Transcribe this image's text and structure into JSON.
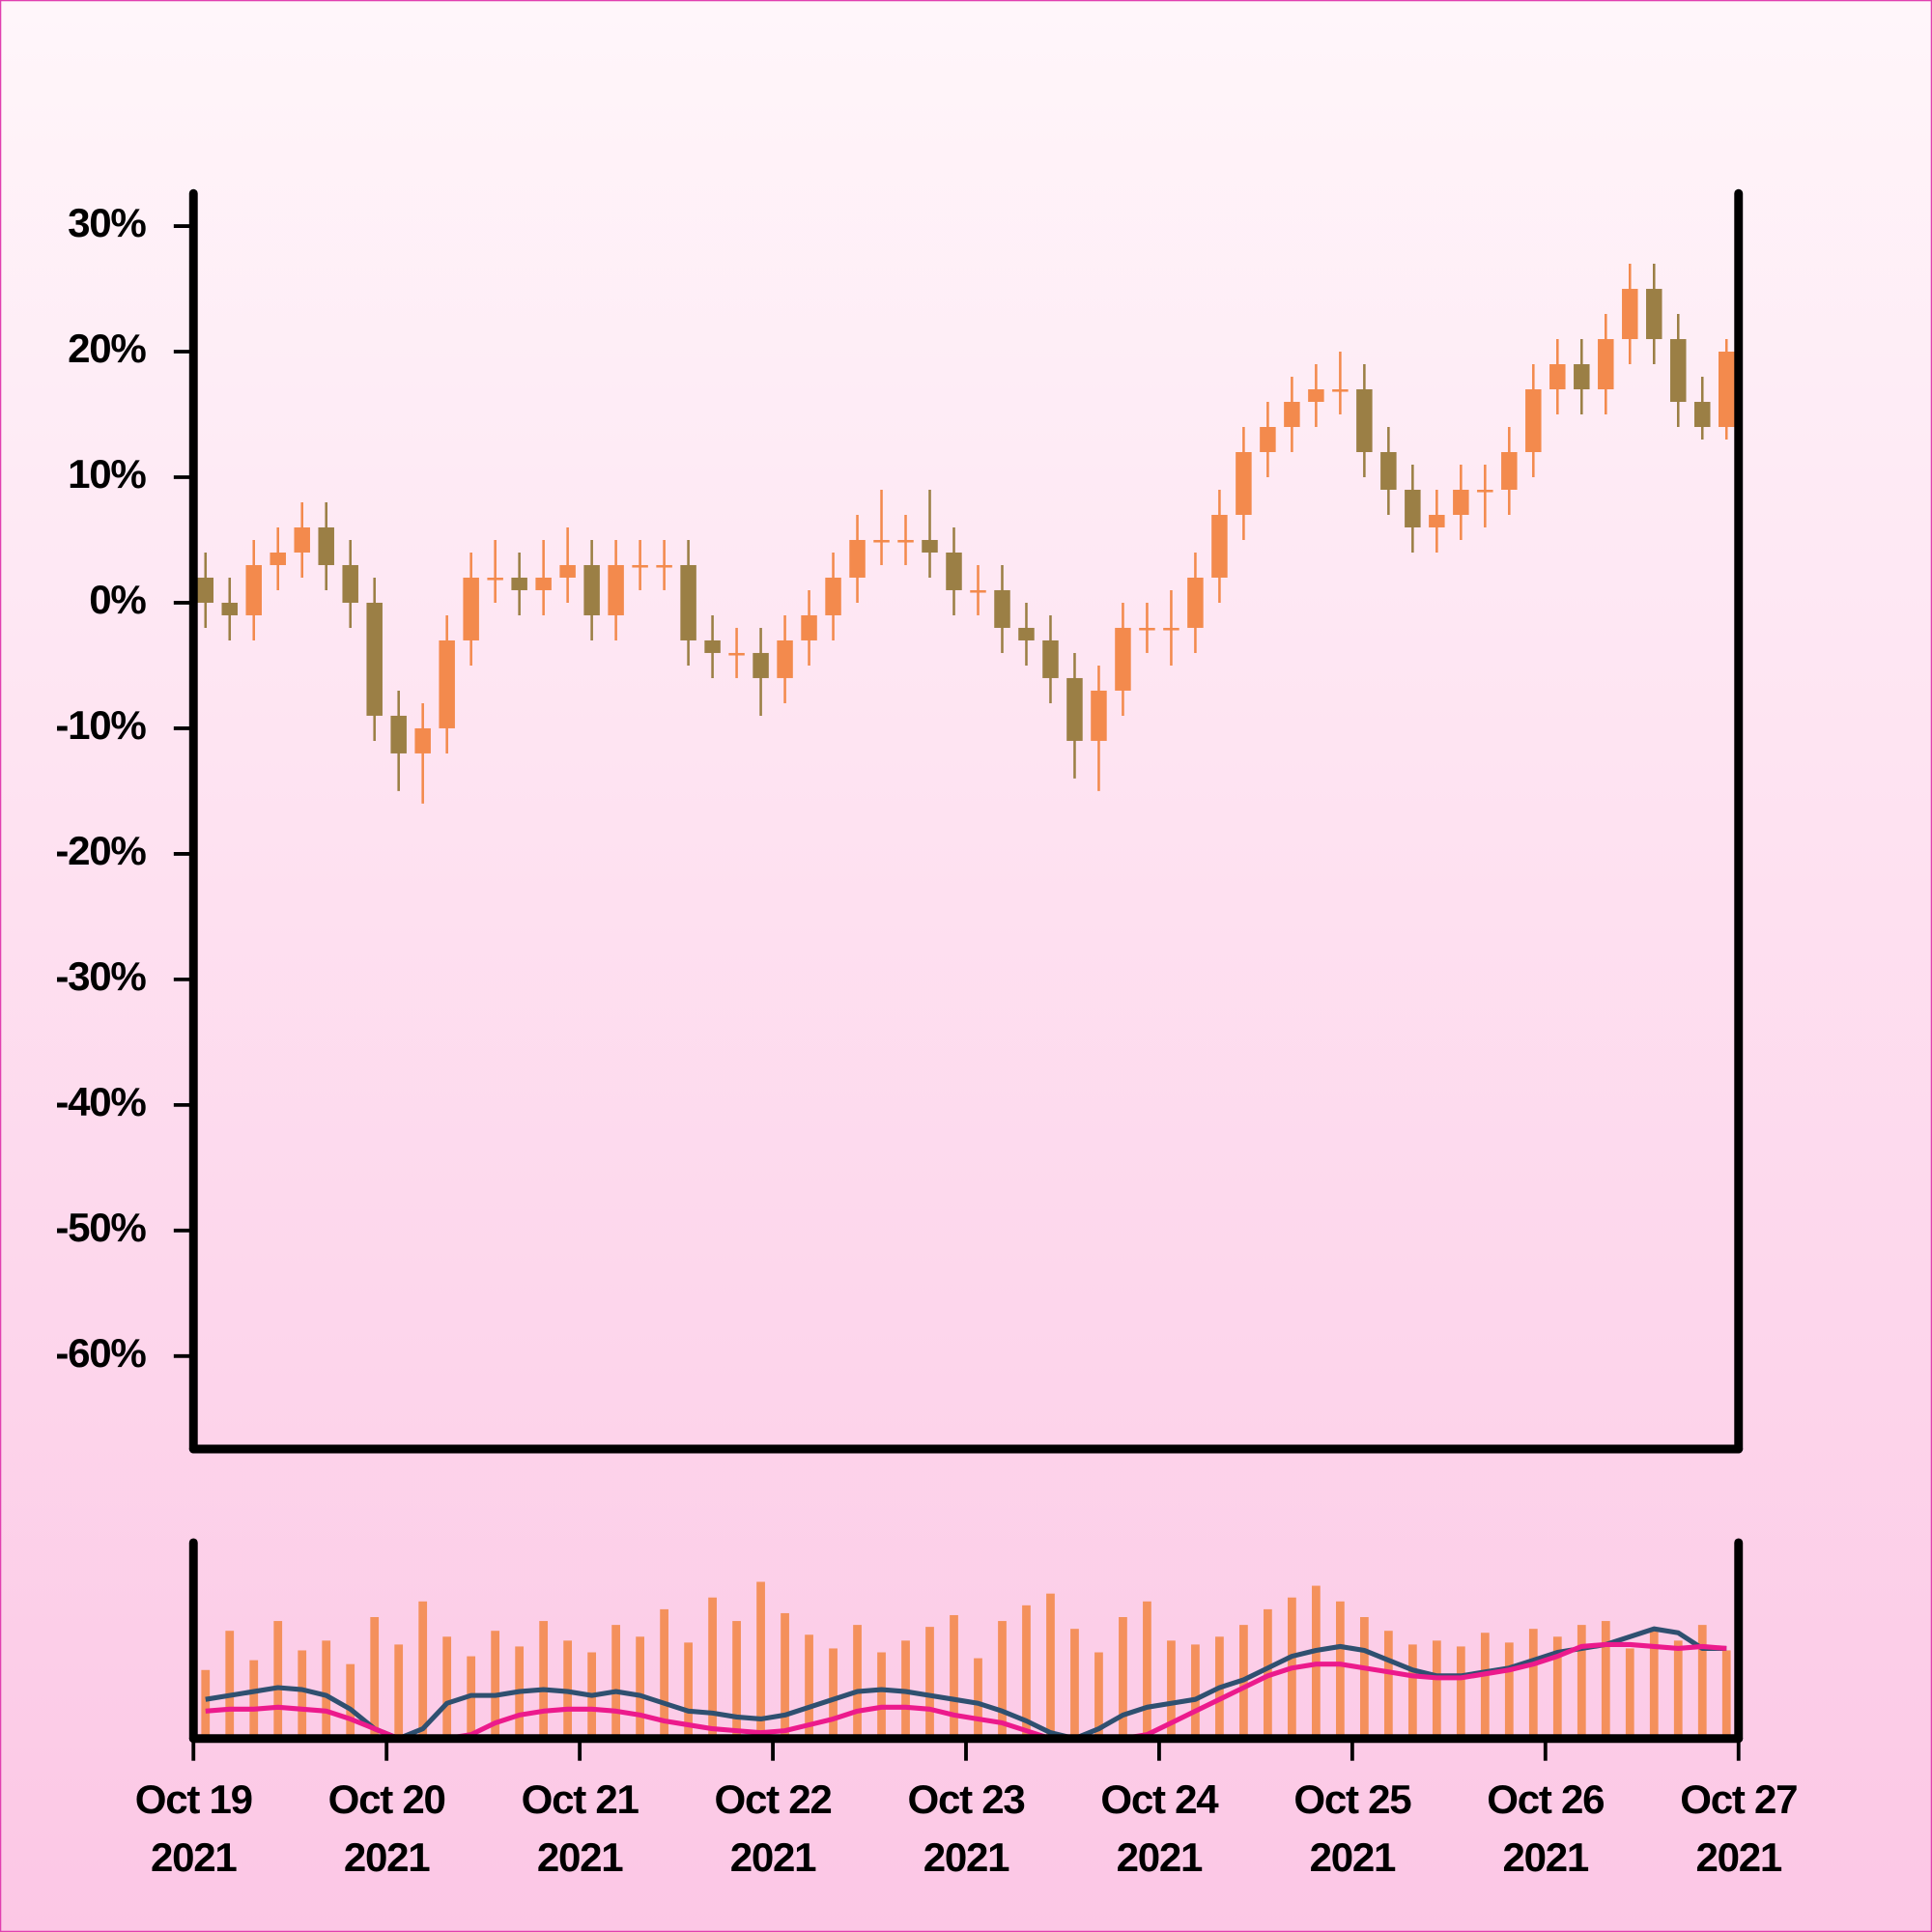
{
  "chart_data": [
    {
      "type": "candlestick",
      "x": [
        "2021-10-19T01:30",
        "2021-10-19T04:30",
        "2021-10-19T07:30",
        "2021-10-19T10:30",
        "2021-10-19T13:30",
        "2021-10-19T16:30",
        "2021-10-19T19:30",
        "2021-10-19T22:30",
        "2021-10-20T01:30",
        "2021-10-20T04:30",
        "2021-10-20T07:30",
        "2021-10-20T10:30",
        "2021-10-20T13:30",
        "2021-10-20T16:30",
        "2021-10-20T19:30",
        "2021-10-20T22:30",
        "2021-10-21T01:30",
        "2021-10-21T04:30",
        "2021-10-21T07:30",
        "2021-10-21T10:30",
        "2021-10-21T13:30",
        "2021-10-21T16:30",
        "2021-10-21T19:30",
        "2021-10-21T22:30",
        "2021-10-22T01:30",
        "2021-10-22T04:30",
        "2021-10-22T07:30",
        "2021-10-22T10:30",
        "2021-10-22T13:30",
        "2021-10-22T16:30",
        "2021-10-22T19:30",
        "2021-10-22T22:30",
        "2021-10-23T01:30",
        "2021-10-23T04:30",
        "2021-10-23T07:30",
        "2021-10-23T10:30",
        "2021-10-23T13:30",
        "2021-10-23T16:30",
        "2021-10-23T19:30",
        "2021-10-23T22:30",
        "2021-10-24T01:30",
        "2021-10-24T04:30",
        "2021-10-24T07:30",
        "2021-10-24T10:30",
        "2021-10-24T13:30",
        "2021-10-24T16:30",
        "2021-10-24T19:30",
        "2021-10-24T22:30",
        "2021-10-25T01:30",
        "2021-10-25T04:30",
        "2021-10-25T07:30",
        "2021-10-25T10:30",
        "2021-10-25T13:30",
        "2021-10-25T16:30",
        "2021-10-25T19:30",
        "2021-10-25T22:30",
        "2021-10-26T01:30",
        "2021-10-26T04:30",
        "2021-10-26T07:30",
        "2021-10-26T10:30",
        "2021-10-26T13:30",
        "2021-10-26T16:30",
        "2021-10-26T19:30",
        "2021-10-26T22:30"
      ],
      "open": [
        2,
        0,
        -1,
        3,
        4,
        6,
        3,
        0,
        -9,
        -12,
        -10,
        -3,
        2,
        2,
        1,
        2,
        3,
        -1,
        3,
        3,
        3,
        -3,
        -4,
        -4,
        -6,
        -3,
        -1,
        2,
        5,
        5,
        5,
        4,
        1,
        1,
        -2,
        -3,
        -6,
        -11,
        -7,
        -2,
        -2,
        -2,
        2,
        7,
        12,
        14,
        16,
        17,
        17,
        12,
        9,
        6,
        7,
        9,
        9,
        12,
        17,
        19,
        17,
        21,
        25,
        21,
        16,
        14
      ],
      "high": [
        4,
        2,
        5,
        6,
        8,
        8,
        5,
        2,
        -7,
        -8,
        -1,
        4,
        5,
        4,
        5,
        6,
        5,
        5,
        5,
        5,
        5,
        -1,
        -2,
        -2,
        -1,
        1,
        4,
        7,
        9,
        7,
        9,
        6,
        3,
        3,
        0,
        -1,
        -4,
        -5,
        0,
        0,
        1,
        4,
        9,
        14,
        16,
        18,
        19,
        20,
        19,
        14,
        11,
        9,
        11,
        11,
        14,
        19,
        21,
        21,
        23,
        27,
        27,
        23,
        18,
        21
      ],
      "low": [
        -2,
        -3,
        -3,
        1,
        2,
        1,
        -2,
        -11,
        -15,
        -16,
        -12,
        -5,
        0,
        -1,
        -1,
        0,
        -3,
        -3,
        1,
        1,
        -5,
        -6,
        -6,
        -9,
        -8,
        -5,
        -3,
        0,
        3,
        3,
        2,
        -1,
        -1,
        -4,
        -5,
        -8,
        -14,
        -15,
        -9,
        -4,
        -5,
        -4,
        0,
        5,
        10,
        12,
        14,
        15,
        10,
        7,
        4,
        4,
        5,
        6,
        7,
        10,
        15,
        15,
        15,
        19,
        19,
        14,
        13,
        13
      ],
      "close": [
        0,
        -1,
        3,
        4,
        6,
        3,
        0,
        -9,
        -12,
        -10,
        -3,
        2,
        2,
        1,
        2,
        3,
        -1,
        3,
        3,
        3,
        -3,
        -4,
        -4,
        -6,
        -3,
        -1,
        2,
        5,
        5,
        5,
        4,
        1,
        1,
        -2,
        -3,
        -6,
        -11,
        -7,
        -2,
        -2,
        -2,
        2,
        7,
        12,
        14,
        16,
        17,
        17,
        12,
        9,
        6,
        7,
        9,
        9,
        12,
        17,
        19,
        17,
        21,
        25,
        21,
        16,
        14,
        20
      ],
      "up_color": "#f38a4d",
      "down_color": "#9b7f45",
      "xlim": [
        "2021-10-19T00:00",
        "2021-10-27T00:00"
      ],
      "ylim": [
        -67.4,
        32.6
      ],
      "yticks": [
        {
          "value": 30,
          "label": "30%"
        },
        {
          "value": 20,
          "label": "20%"
        },
        {
          "value": 10,
          "label": "10%"
        },
        {
          "value": 0,
          "label": "0%"
        },
        {
          "value": -10,
          "label": "-10%"
        },
        {
          "value": -20,
          "label": "-20%"
        },
        {
          "value": -30,
          "label": "-30%"
        },
        {
          "value": -40,
          "label": "-40%"
        },
        {
          "value": -50,
          "label": "-50%"
        },
        {
          "value": -60,
          "label": "-60%"
        }
      ]
    },
    {
      "type": "bar",
      "x": [
        "2021-10-19T01:30",
        "2021-10-19T04:30",
        "2021-10-19T07:30",
        "2021-10-19T10:30",
        "2021-10-19T13:30",
        "2021-10-19T16:30",
        "2021-10-19T19:30",
        "2021-10-19T22:30",
        "2021-10-20T01:30",
        "2021-10-20T04:30",
        "2021-10-20T07:30",
        "2021-10-20T10:30",
        "2021-10-20T13:30",
        "2021-10-20T16:30",
        "2021-10-20T19:30",
        "2021-10-20T22:30",
        "2021-10-21T01:30",
        "2021-10-21T04:30",
        "2021-10-21T07:30",
        "2021-10-21T10:30",
        "2021-10-21T13:30",
        "2021-10-21T16:30",
        "2021-10-21T19:30",
        "2021-10-21T22:30",
        "2021-10-22T01:30",
        "2021-10-22T04:30",
        "2021-10-22T07:30",
        "2021-10-22T10:30",
        "2021-10-22T13:30",
        "2021-10-22T16:30",
        "2021-10-22T19:30",
        "2021-10-22T22:30",
        "2021-10-23T01:30",
        "2021-10-23T04:30",
        "2021-10-23T07:30",
        "2021-10-23T10:30",
        "2021-10-23T13:30",
        "2021-10-23T16:30",
        "2021-10-23T19:30",
        "2021-10-23T22:30",
        "2021-10-24T01:30",
        "2021-10-24T04:30",
        "2021-10-24T07:30",
        "2021-10-24T10:30",
        "2021-10-24T13:30",
        "2021-10-24T16:30",
        "2021-10-24T19:30",
        "2021-10-24T22:30",
        "2021-10-25T01:30",
        "2021-10-25T04:30",
        "2021-10-25T07:30",
        "2021-10-25T10:30",
        "2021-10-25T13:30",
        "2021-10-25T16:30",
        "2021-10-25T19:30",
        "2021-10-25T22:30",
        "2021-10-26T01:30",
        "2021-10-26T04:30",
        "2021-10-26T07:30",
        "2021-10-26T10:30",
        "2021-10-26T13:30",
        "2021-10-26T16:30",
        "2021-10-26T19:30",
        "2021-10-26T22:30"
      ],
      "values": [
        35,
        55,
        40,
        60,
        45,
        50,
        38,
        62,
        48,
        70,
        52,
        42,
        55,
        47,
        60,
        50,
        44,
        58,
        52,
        66,
        49,
        72,
        60,
        80,
        64,
        53,
        46,
        58,
        44,
        50,
        57,
        63,
        41,
        60,
        68,
        74,
        56,
        44,
        62,
        70,
        50,
        48,
        52,
        58,
        66,
        72,
        78,
        70,
        62,
        55,
        48,
        50,
        47,
        54,
        49,
        56,
        52,
        58,
        60,
        46,
        55,
        50,
        58,
        45
      ],
      "color": "#f38a4d",
      "lines": [
        {
          "color": "#2f5070",
          "values": [
            20,
            22,
            24,
            26,
            25,
            22,
            15,
            5,
            0,
            5,
            18,
            22,
            22,
            24,
            25,
            24,
            22,
            24,
            22,
            18,
            14,
            13,
            11,
            10,
            12,
            16,
            20,
            24,
            25,
            24,
            22,
            20,
            18,
            14,
            9,
            3,
            0,
            5,
            12,
            16,
            18,
            20,
            26,
            30,
            36,
            42,
            45,
            47,
            45,
            40,
            35,
            32,
            32,
            34,
            36,
            40,
            44,
            46,
            48,
            52,
            56,
            54,
            46,
            46
          ]
        },
        {
          "color": "#ec1a8c",
          "values": [
            14,
            15,
            15,
            16,
            15,
            14,
            10,
            5,
            0,
            0,
            0,
            2,
            8,
            12,
            14,
            15,
            15,
            14,
            12,
            9,
            7,
            5,
            4,
            3,
            4,
            7,
            10,
            14,
            16,
            16,
            15,
            12,
            10,
            8,
            4,
            0,
            0,
            0,
            0,
            2,
            8,
            14,
            20,
            26,
            32,
            36,
            38,
            38,
            36,
            34,
            32,
            31,
            31,
            33,
            35,
            38,
            42,
            47,
            48,
            48,
            47,
            46,
            47,
            46
          ]
        }
      ],
      "xlim": [
        "2021-10-19T00:00",
        "2021-10-27T00:00"
      ],
      "ylim": [
        0,
        100
      ],
      "xticks": [
        {
          "value": "2021-10-19T00:00",
          "label": [
            "Oct 19",
            "2021"
          ]
        },
        {
          "value": "2021-10-20T00:00",
          "label": [
            "Oct 20",
            "2021"
          ]
        },
        {
          "value": "2021-10-21T00:00",
          "label": [
            "Oct 21",
            "2021"
          ]
        },
        {
          "value": "2021-10-22T00:00",
          "label": [
            "Oct 22",
            "2021"
          ]
        },
        {
          "value": "2021-10-23T00:00",
          "label": [
            "Oct 23",
            "2021"
          ]
        },
        {
          "value": "2021-10-24T00:00",
          "label": [
            "Oct 24",
            "2021"
          ]
        },
        {
          "value": "2021-10-25T00:00",
          "label": [
            "Oct 25",
            "2021"
          ]
        },
        {
          "value": "2021-10-26T00:00",
          "label": [
            "Oct 26",
            "2021"
          ]
        },
        {
          "value": "2021-10-27T00:00",
          "label": [
            "Oct 27",
            "2021"
          ]
        }
      ]
    }
  ]
}
